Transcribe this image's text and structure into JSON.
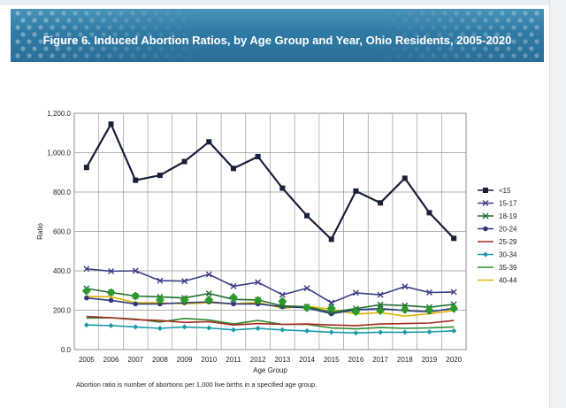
{
  "banner": {
    "title": "Figure 6.  Induced Abortion Ratios, by Age Group and Year, Ohio Residents, 2005-2020"
  },
  "note": "Abortion ratio is number of abortions per 1,000 live births in a specified age group.",
  "chart_data": {
    "type": "line",
    "title": "Figure 6.  Induced Abortion Ratios, by Age Group and Year, Ohio Residents, 2005-2020",
    "xlabel": "Age Group",
    "ylabel": "Ratio",
    "ylim": [
      0,
      1200
    ],
    "yticks": [
      "0.0",
      "200.0",
      "400.0",
      "600.0",
      "800.0",
      "1,000.0",
      "1,200.0"
    ],
    "categories": [
      "2005",
      "2006",
      "2007",
      "2008",
      "2009",
      "2010",
      "2011",
      "2012",
      "2013",
      "2014",
      "2015",
      "2016",
      "2017",
      "2018",
      "2019",
      "2020"
    ],
    "grid": true,
    "legend_position": "right",
    "series": [
      {
        "name": "<15",
        "color": "#1a1f3a",
        "marker": "square",
        "values": [
          925,
          1145,
          860,
          885,
          955,
          1055,
          920,
          980,
          820,
          680,
          560,
          805,
          745,
          870,
          695,
          565
        ]
      },
      {
        "name": "15-17",
        "color": "#3d3f86",
        "marker": "x",
        "values": [
          410,
          398,
          400,
          350,
          348,
          382,
          322,
          342,
          278,
          312,
          238,
          288,
          278,
          320,
          290,
          292
        ]
      },
      {
        "name": "18-19",
        "color": "#1f6f2e",
        "marker": "x",
        "values": [
          310,
          290,
          272,
          268,
          262,
          285,
          255,
          252,
          222,
          218,
          190,
          208,
          228,
          224,
          215,
          230
        ]
      },
      {
        "name": "20-24",
        "color": "#2c3a7a",
        "marker": "circle",
        "values": [
          262,
          250,
          232,
          232,
          238,
          242,
          232,
          232,
          218,
          212,
          182,
          202,
          208,
          198,
          192,
          210
        ]
      },
      {
        "name": "25-29",
        "color": "#a52a1e",
        "marker": "none",
        "values": [
          168,
          162,
          152,
          148,
          138,
          142,
          125,
          132,
          128,
          130,
          125,
          122,
          130,
          132,
          135,
          148
        ]
      },
      {
        "name": "30-34",
        "color": "#1a9aa8",
        "marker": "diamond",
        "values": [
          125,
          122,
          115,
          108,
          115,
          110,
          100,
          108,
          100,
          95,
          88,
          85,
          88,
          88,
          90,
          95
        ]
      },
      {
        "name": "35-39",
        "color": "#2e8b2e",
        "marker": "none",
        "values": [
          160,
          162,
          155,
          140,
          158,
          150,
          130,
          148,
          128,
          128,
          110,
          105,
          112,
          108,
          110,
          115
        ]
      },
      {
        "name": "40-44",
        "color": "#e0b400",
        "marker": "none",
        "values": [
          270,
          268,
          238,
          238,
          232,
          238,
          232,
          240,
          210,
          220,
          205,
          180,
          188,
          170,
          182,
          198
        ]
      }
    ],
    "overlay_markers": {
      "name": "green diamonds",
      "color": "#2a9a2a",
      "values": [
        298,
        290,
        272,
        252,
        252,
        252,
        265,
        250,
        245,
        212,
        210,
        192,
        198,
        202,
        200,
        208
      ]
    }
  }
}
